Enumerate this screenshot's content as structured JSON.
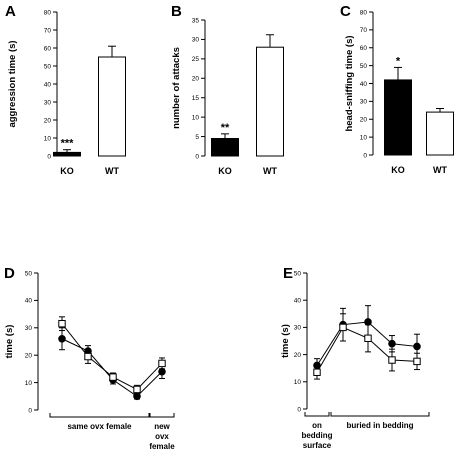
{
  "chart_data": [
    {
      "panel": "A",
      "type": "bar",
      "ylabel": "aggression time (s)",
      "ylim": [
        0,
        80
      ],
      "yticks": [
        0,
        10,
        20,
        30,
        40,
        50,
        60,
        70,
        80
      ],
      "categories": [
        "KO",
        "WT"
      ],
      "values": [
        2,
        55
      ],
      "errors": [
        1.5,
        6
      ],
      "fills": [
        "#000000",
        "#ffffff"
      ],
      "annotations": [
        "***",
        ""
      ]
    },
    {
      "panel": "B",
      "type": "bar",
      "ylabel": "number of attacks",
      "ylim": [
        0,
        35
      ],
      "yticks": [
        0,
        5,
        10,
        15,
        20,
        25,
        30,
        35
      ],
      "categories": [
        "KO",
        "WT"
      ],
      "values": [
        4.5,
        28
      ],
      "errors": [
        1.2,
        3.2
      ],
      "fills": [
        "#000000",
        "#ffffff"
      ],
      "annotations": [
        "**",
        ""
      ]
    },
    {
      "panel": "C",
      "type": "bar",
      "ylabel": "head-sniffing time (s)",
      "ylim": [
        0,
        80
      ],
      "yticks": [
        0,
        10,
        20,
        30,
        40,
        50,
        60,
        70,
        80
      ],
      "categories": [
        "KO",
        "WT"
      ],
      "values": [
        42,
        24
      ],
      "errors": [
        7,
        2
      ],
      "fills": [
        "#000000",
        "#ffffff"
      ],
      "annotations": [
        "*",
        ""
      ]
    },
    {
      "panel": "D",
      "type": "line",
      "ylabel": "time (s)",
      "ylim": [
        0,
        50
      ],
      "yticks": [
        0,
        10,
        20,
        30,
        40,
        50
      ],
      "x": [
        1,
        2,
        3,
        4,
        5
      ],
      "series": [
        {
          "marker": "filled-circle",
          "values": [
            26,
            21.5,
            11,
            5,
            14
          ],
          "errors": [
            4,
            2,
            1.5,
            1,
            2.5
          ]
        },
        {
          "marker": "open-square",
          "values": [
            31.5,
            19.5,
            12,
            7.5,
            17
          ],
          "errors": [
            2.5,
            2.5,
            1.5,
            1.5,
            2
          ]
        }
      ],
      "groups": [
        {
          "label": [
            "same ovx female"
          ],
          "from": 1,
          "to": 4
        },
        {
          "label": [
            "new",
            "ovx",
            "female"
          ],
          "from": 5,
          "to": 5
        }
      ]
    },
    {
      "panel": "E",
      "type": "line",
      "ylabel": "time (s)",
      "ylim": [
        0,
        50
      ],
      "yticks": [
        0,
        10,
        20,
        30,
        40,
        50
      ],
      "x": [
        1,
        2,
        3,
        4,
        5
      ],
      "series": [
        {
          "marker": "filled-circle",
          "values": [
            16,
            31,
            32,
            24,
            23
          ],
          "errors": [
            2.5,
            6,
            6,
            3,
            4.5
          ]
        },
        {
          "marker": "open-square",
          "values": [
            13.5,
            30,
            26,
            18,
            17.5
          ],
          "errors": [
            2.5,
            5,
            5,
            4,
            3
          ]
        }
      ],
      "groups": [
        {
          "label": [
            "on",
            "bedding",
            "surface"
          ],
          "from": 1,
          "to": 1
        },
        {
          "label": [
            "buried in bedding"
          ],
          "from": 2,
          "to": 5
        }
      ]
    }
  ]
}
